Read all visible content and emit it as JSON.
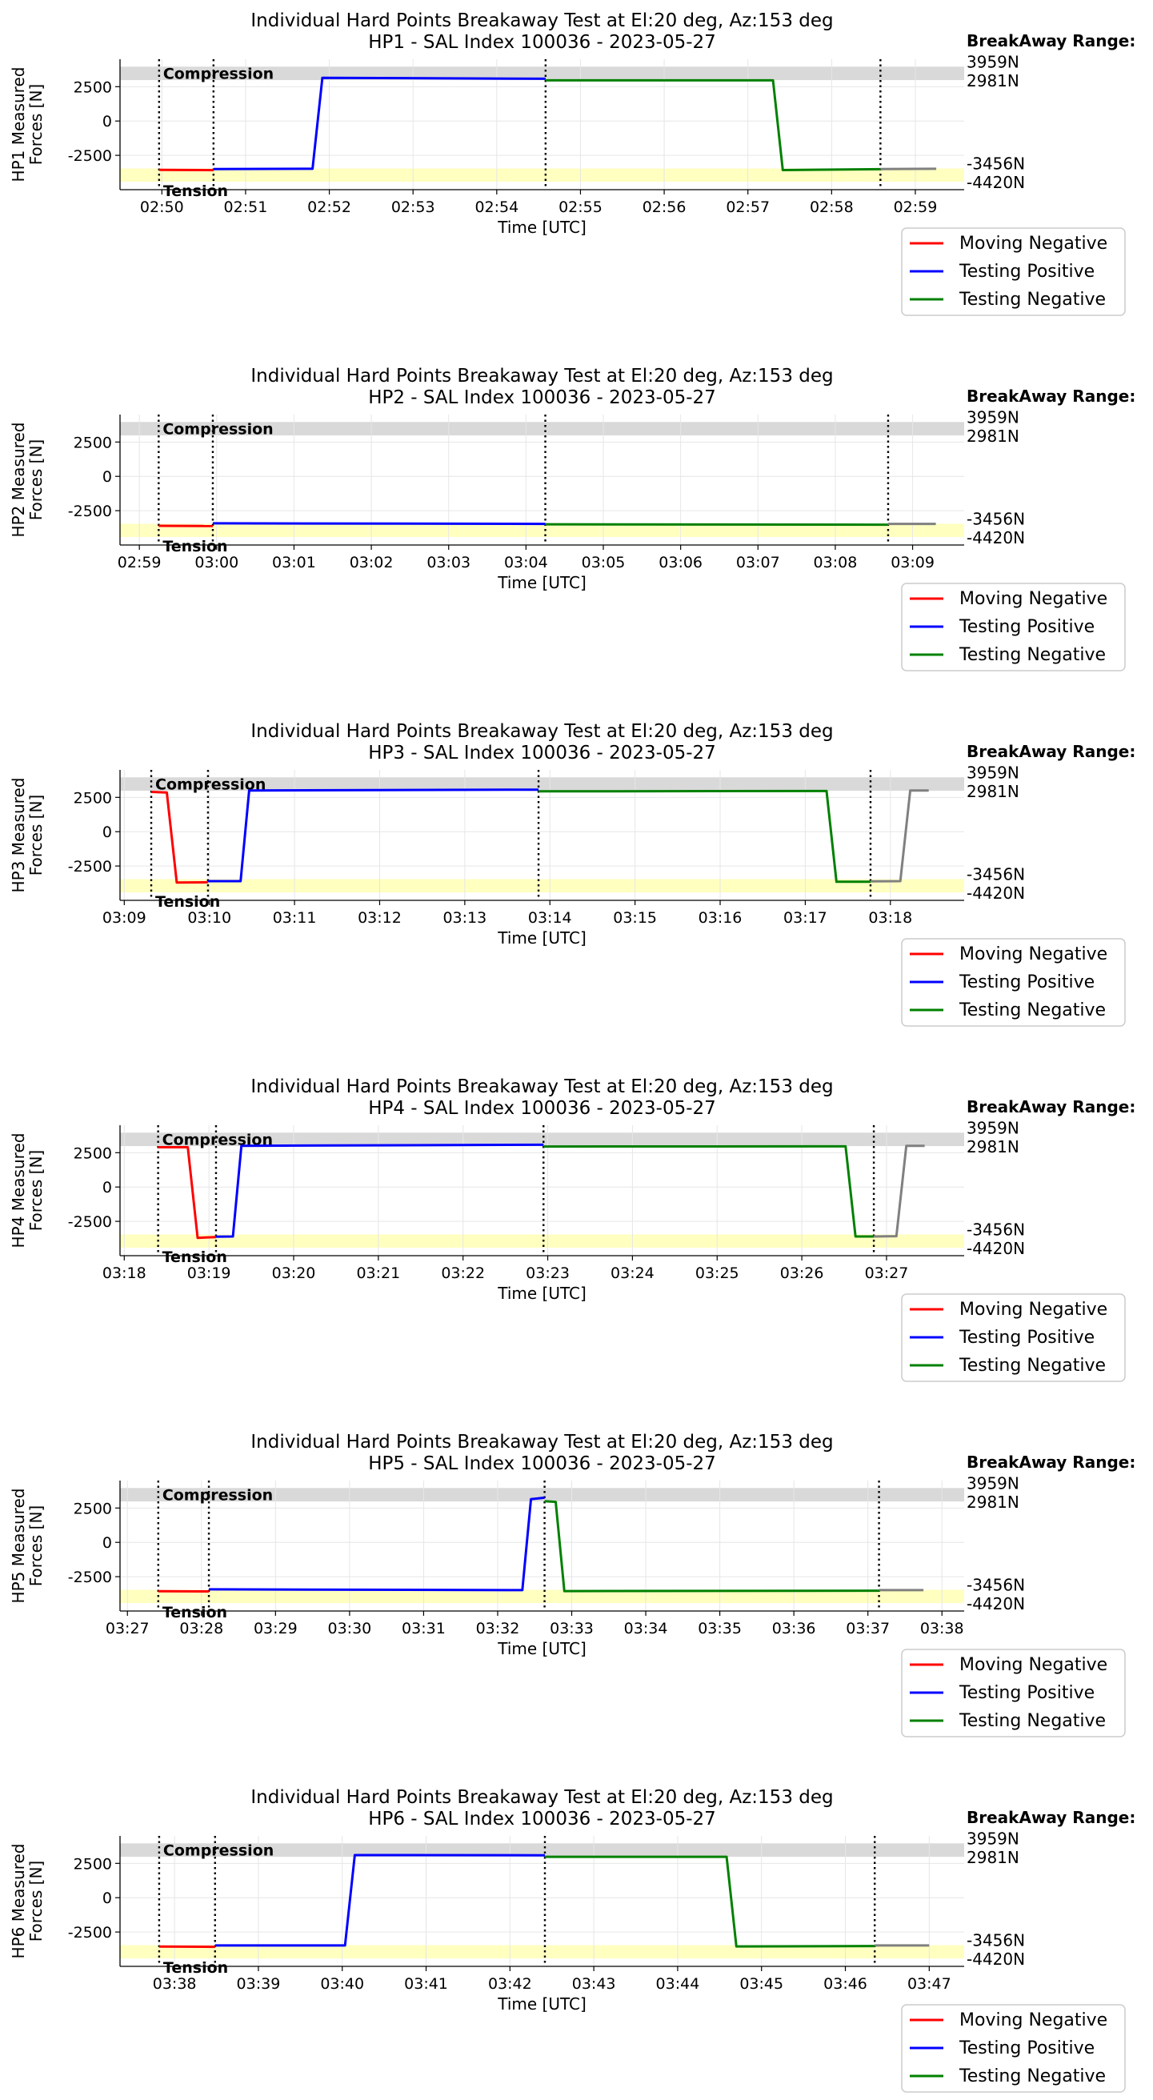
{
  "figure": {
    "colors": {
      "moving_negative": "#ff0000",
      "testing_positive": "#0000ff",
      "testing_negative": "#008000",
      "after_test": "#808080",
      "compression_band": "#d9d9d9",
      "tension_band": "#ffffc0"
    }
  },
  "chart_data": [
    {
      "type": "line",
      "title": "Individual Hard Points Breakaway Test at El:20 deg, Az:153 deg",
      "subtitle": "HP1 - SAL Index 100036 - 2023-05-27",
      "xlabel": "Time [UTC]",
      "ylabel": "HP1 Measured Forces [N]",
      "ylabel_lines": [
        "HP1 Measured",
        "Forces [N]"
      ],
      "xlim": [
        "02:49:30",
        "02:59:35"
      ],
      "ylim": [
        -5000,
        4500
      ],
      "xticks": [
        "02:50",
        "02:51",
        "02:52",
        "02:53",
        "02:54",
        "02:55",
        "02:56",
        "02:57",
        "02:58",
        "02:59"
      ],
      "yticks": [
        2500,
        0,
        -2500
      ],
      "grid": true,
      "band_labels": {
        "compression": "Compression",
        "tension": "Tension"
      },
      "bands": {
        "compression": [
          2981,
          3959
        ],
        "tension": [
          -4420,
          -3456
        ]
      },
      "breakaway_range": {
        "title": "BreakAway Range:",
        "values": [
          "3959N",
          "2981N",
          "-3456N",
          "-4420N"
        ]
      },
      "vlines": [
        "02:49:58",
        "02:50:37",
        "02:54:35",
        "02:58:35"
      ],
      "legend": {
        "position": "below-right",
        "entries": [
          "Moving Negative",
          "Testing Positive",
          "Testing Negative"
        ]
      },
      "series": [
        {
          "name": "Moving Negative",
          "points": [
            [
              "02:49:58",
              -3560
            ],
            [
              "02:50:37",
              -3580
            ]
          ]
        },
        {
          "name": "Testing Positive",
          "points": [
            [
              "02:50:37",
              -3500
            ],
            [
              "02:51:48",
              -3480
            ],
            [
              "02:51:55",
              3150
            ],
            [
              "02:54:35",
              3080
            ]
          ]
        },
        {
          "name": "Testing Negative",
          "points": [
            [
              "02:54:35",
              2960
            ],
            [
              "02:57:18",
              2960
            ],
            [
              "02:57:25",
              -3570
            ],
            [
              "02:58:35",
              -3510
            ]
          ]
        },
        {
          "points": [
            [
              "02:58:35",
              -3500
            ],
            [
              "02:59:15",
              -3480
            ]
          ]
        }
      ]
    },
    {
      "type": "line",
      "title": "Individual Hard Points Breakaway Test at El:20 deg, Az:153 deg",
      "subtitle": "HP2 - SAL Index 100036 - 2023-05-27",
      "xlabel": "Time [UTC]",
      "ylabel": "HP2 Measured Forces [N]",
      "ylabel_lines": [
        "HP2 Measured",
        "Forces [N]"
      ],
      "xlim": [
        "02:58:45",
        "03:09:40"
      ],
      "ylim": [
        -5000,
        4500
      ],
      "xticks": [
        "02:59",
        "03:00",
        "03:01",
        "03:02",
        "03:03",
        "03:04",
        "03:05",
        "03:06",
        "03:07",
        "03:08",
        "03:09"
      ],
      "yticks": [
        2500,
        0,
        -2500
      ],
      "grid": true,
      "band_labels": {
        "compression": "Compression",
        "tension": "Tension"
      },
      "bands": {
        "compression": [
          2981,
          3959
        ],
        "tension": [
          -4420,
          -3456
        ]
      },
      "breakaway_range": {
        "title": "BreakAway Range:",
        "values": [
          "3959N",
          "2981N",
          "-3456N",
          "-4420N"
        ]
      },
      "vlines": [
        "02:59:15",
        "02:59:57",
        "03:04:15",
        "03:08:41"
      ],
      "legend": {
        "position": "below-right",
        "entries": [
          "Moving Negative",
          "Testing Positive",
          "Testing Negative"
        ]
      },
      "series": [
        {
          "name": "Moving Negative",
          "points": [
            [
              "02:59:15",
              -3600
            ],
            [
              "02:59:57",
              -3620
            ]
          ]
        },
        {
          "name": "Testing Positive",
          "points": [
            [
              "02:59:57",
              -3420
            ],
            [
              "03:04:15",
              -3460
            ]
          ]
        },
        {
          "name": "Testing Negative",
          "points": [
            [
              "03:04:15",
              -3490
            ],
            [
              "03:08:41",
              -3520
            ]
          ]
        },
        {
          "points": [
            [
              "03:08:41",
              -3460
            ],
            [
              "03:09:18",
              -3460
            ]
          ]
        }
      ]
    },
    {
      "type": "line",
      "title": "Individual Hard Points Breakaway Test at El:20 deg, Az:153 deg",
      "subtitle": "HP3 - SAL Index 100036 - 2023-05-27",
      "xlabel": "Time [UTC]",
      "ylabel": "HP3 Measured Forces [N]",
      "ylabel_lines": [
        "HP3 Measured",
        "Forces [N]"
      ],
      "xlim": [
        "03:08:57",
        "03:18:52"
      ],
      "ylim": [
        -5000,
        4500
      ],
      "xticks": [
        "03:09",
        "03:10",
        "03:11",
        "03:12",
        "03:13",
        "03:14",
        "03:15",
        "03:16",
        "03:17",
        "03:18"
      ],
      "yticks": [
        2500,
        0,
        -2500
      ],
      "grid": true,
      "band_labels": {
        "compression": "Compression",
        "tension": "Tension"
      },
      "bands": {
        "compression": [
          2981,
          3959
        ],
        "tension": [
          -4420,
          -3456
        ]
      },
      "breakaway_range": {
        "title": "BreakAway Range:",
        "values": [
          "3959N",
          "2981N",
          "-3456N",
          "-4420N"
        ]
      },
      "vlines": [
        "03:09:19",
        "03:09:59",
        "03:13:52",
        "03:17:46"
      ],
      "legend": {
        "position": "below-right",
        "entries": [
          "Moving Negative",
          "Testing Positive",
          "Testing Negative"
        ]
      },
      "series": [
        {
          "name": "Moving Negative",
          "points": [
            [
              "03:09:19",
              2900
            ],
            [
              "03:09:30",
              2850
            ],
            [
              "03:09:37",
              -3700
            ],
            [
              "03:09:59",
              -3680
            ]
          ]
        },
        {
          "name": "Testing Positive",
          "points": [
            [
              "03:09:59",
              -3600
            ],
            [
              "03:10:22",
              -3600
            ],
            [
              "03:10:28",
              3000
            ],
            [
              "03:13:52",
              3060
            ]
          ]
        },
        {
          "name": "Testing Negative",
          "points": [
            [
              "03:13:52",
              2940
            ],
            [
              "03:17:15",
              2960
            ],
            [
              "03:17:22",
              -3650
            ],
            [
              "03:17:46",
              -3640
            ]
          ]
        },
        {
          "points": [
            [
              "03:17:46",
              -3620
            ],
            [
              "03:18:07",
              -3600
            ],
            [
              "03:18:14",
              3000
            ],
            [
              "03:18:27",
              3000
            ]
          ]
        }
      ]
    },
    {
      "type": "line",
      "title": "Individual Hard Points Breakaway Test at El:20 deg, Az:153 deg",
      "subtitle": "HP4 - SAL Index 100036 - 2023-05-27",
      "xlabel": "Time [UTC]",
      "ylabel": "HP4 Measured Forces [N]",
      "ylabel_lines": [
        "HP4 Measured",
        "Forces [N]"
      ],
      "xlim": [
        "03:17:57",
        "03:27:55"
      ],
      "ylim": [
        -5000,
        4500
      ],
      "xticks": [
        "03:18",
        "03:19",
        "03:20",
        "03:21",
        "03:22",
        "03:23",
        "03:24",
        "03:25",
        "03:26",
        "03:27"
      ],
      "yticks": [
        2500,
        0,
        -2500
      ],
      "grid": true,
      "band_labels": {
        "compression": "Compression",
        "tension": "Tension"
      },
      "bands": {
        "compression": [
          2981,
          3959
        ],
        "tension": [
          -4420,
          -3456
        ]
      },
      "breakaway_range": {
        "title": "BreakAway Range:",
        "values": [
          "3959N",
          "2981N",
          "-3456N",
          "-4420N"
        ]
      },
      "vlines": [
        "03:18:24",
        "03:19:05",
        "03:22:57",
        "03:26:51"
      ],
      "legend": {
        "position": "below-right",
        "entries": [
          "Moving Negative",
          "Testing Positive",
          "Testing Negative"
        ]
      },
      "series": [
        {
          "name": "Moving Negative",
          "points": [
            [
              "03:18:24",
              2900
            ],
            [
              "03:18:45",
              2900
            ],
            [
              "03:18:52",
              -3700
            ],
            [
              "03:19:05",
              -3650
            ]
          ]
        },
        {
          "name": "Testing Positive",
          "points": [
            [
              "03:19:05",
              -3620
            ],
            [
              "03:19:17",
              -3600
            ],
            [
              "03:19:23",
              3000
            ],
            [
              "03:22:57",
              3080
            ]
          ]
        },
        {
          "name": "Testing Negative",
          "points": [
            [
              "03:22:57",
              2950
            ],
            [
              "03:26:31",
              2960
            ],
            [
              "03:26:38",
              -3600
            ],
            [
              "03:26:51",
              -3600
            ]
          ]
        },
        {
          "points": [
            [
              "03:26:51",
              -3600
            ],
            [
              "03:27:07",
              -3580
            ],
            [
              "03:27:14",
              3000
            ],
            [
              "03:27:27",
              3000
            ]
          ]
        }
      ]
    },
    {
      "type": "line",
      "title": "Individual Hard Points Breakaway Test at El:20 deg, Az:153 deg",
      "subtitle": "HP5 - SAL Index 100036 - 2023-05-27",
      "xlabel": "Time [UTC]",
      "ylabel": "HP5 Measured Forces [N]",
      "ylabel_lines": [
        "HP5 Measured",
        "Forces [N]"
      ],
      "xlim": [
        "03:26:54",
        "03:38:18"
      ],
      "ylim": [
        -5000,
        4500
      ],
      "xticks": [
        "03:27",
        "03:28",
        "03:29",
        "03:30",
        "03:31",
        "03:32",
        "03:33",
        "03:34",
        "03:35",
        "03:36",
        "03:37",
        "03:38"
      ],
      "yticks": [
        2500,
        0,
        -2500
      ],
      "grid": true,
      "band_labels": {
        "compression": "Compression",
        "tension": "Tension"
      },
      "bands": {
        "compression": [
          2981,
          3959
        ],
        "tension": [
          -4420,
          -3456
        ]
      },
      "breakaway_range": {
        "title": "BreakAway Range:",
        "values": [
          "3959N",
          "2981N",
          "-3456N",
          "-4420N"
        ]
      },
      "vlines": [
        "03:27:25",
        "03:28:06",
        "03:32:38",
        "03:37:09"
      ],
      "legend": {
        "position": "below-right",
        "entries": [
          "Moving Negative",
          "Testing Positive",
          "Testing Negative"
        ]
      },
      "series": [
        {
          "name": "Moving Negative",
          "points": [
            [
              "03:27:25",
              -3560
            ],
            [
              "03:28:06",
              -3570
            ]
          ]
        },
        {
          "name": "Testing Positive",
          "points": [
            [
              "03:28:06",
              -3420
            ],
            [
              "03:32:20",
              -3480
            ],
            [
              "03:32:27",
              3150
            ],
            [
              "03:32:38",
              3250
            ]
          ]
        },
        {
          "name": "Testing Negative",
          "points": [
            [
              "03:32:38",
              3000
            ],
            [
              "03:32:47",
              2950
            ],
            [
              "03:32:54",
              -3550
            ],
            [
              "03:37:09",
              -3520
            ]
          ]
        },
        {
          "points": [
            [
              "03:37:09",
              -3480
            ],
            [
              "03:37:45",
              -3480
            ]
          ]
        }
      ]
    },
    {
      "type": "line",
      "title": "Individual Hard Points Breakaway Test at El:20 deg, Az:153 deg",
      "subtitle": "HP6 - SAL Index 100036 - 2023-05-27",
      "xlabel": "Time [UTC]",
      "ylabel": "HP6 Measured Forces [N]",
      "ylabel_lines": [
        "HP6 Measured",
        "Forces [N]"
      ],
      "xlim": [
        "03:37:21",
        "03:47:25"
      ],
      "ylim": [
        -5000,
        4500
      ],
      "xticks": [
        "03:38",
        "03:39",
        "03:40",
        "03:41",
        "03:42",
        "03:43",
        "03:44",
        "03:45",
        "03:46",
        "03:47"
      ],
      "yticks": [
        2500,
        0,
        -2500
      ],
      "grid": true,
      "band_labels": {
        "compression": "Compression",
        "tension": "Tension"
      },
      "bands": {
        "compression": [
          2981,
          3959
        ],
        "tension": [
          -4420,
          -3456
        ]
      },
      "breakaway_range": {
        "title": "BreakAway Range:",
        "values": [
          "3959N",
          "2981N",
          "-3456N",
          "-4420N"
        ]
      },
      "vlines": [
        "03:37:49",
        "03:38:29",
        "03:42:25",
        "03:46:21"
      ],
      "legend": {
        "position": "below-right",
        "entries": [
          "Moving Negative",
          "Testing Positive",
          "Testing Negative"
        ]
      },
      "series": [
        {
          "name": "Moving Negative",
          "points": [
            [
              "03:37:49",
              -3560
            ],
            [
              "03:38:29",
              -3580
            ]
          ]
        },
        {
          "name": "Testing Positive",
          "points": [
            [
              "03:38:29",
              -3480
            ],
            [
              "03:40:02",
              -3480
            ],
            [
              "03:40:09",
              3100
            ],
            [
              "03:42:25",
              3090
            ]
          ]
        },
        {
          "name": "Testing Negative",
          "points": [
            [
              "03:42:25",
              2980
            ],
            [
              "03:44:35",
              2980
            ],
            [
              "03:44:42",
              -3550
            ],
            [
              "03:46:21",
              -3520
            ]
          ]
        },
        {
          "points": [
            [
              "03:46:21",
              -3480
            ],
            [
              "03:47:00",
              -3480
            ]
          ]
        }
      ]
    }
  ]
}
